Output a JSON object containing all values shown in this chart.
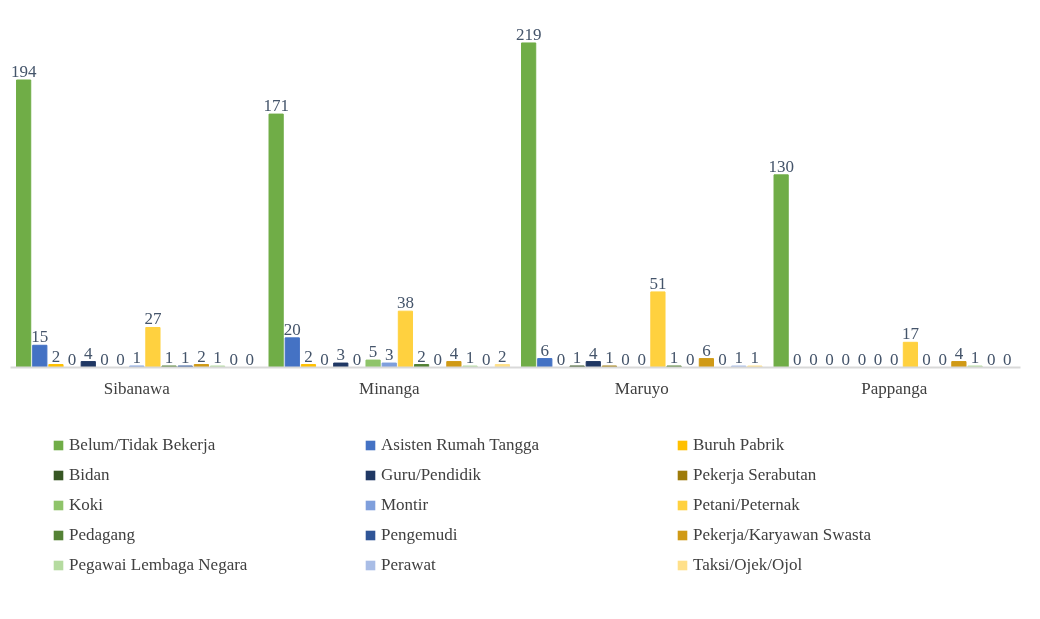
{
  "chart_data": {
    "type": "bar",
    "categories": [
      "Sibanawa",
      "Minanga",
      "Maruyo",
      "Pappanga"
    ],
    "series": [
      {
        "name": "Belum/Tidak Bekerja",
        "color": "#70ad47",
        "values": [
          194,
          171,
          219,
          130
        ]
      },
      {
        "name": "Asisten Rumah Tangga",
        "color": "#4472c4",
        "values": [
          15,
          20,
          6,
          0
        ]
      },
      {
        "name": "Buruh Pabrik",
        "color": "#ffc000",
        "values": [
          2,
          2,
          0,
          0
        ]
      },
      {
        "name": "Bidan",
        "color": "#375623",
        "values": [
          0,
          0,
          1,
          0
        ]
      },
      {
        "name": "Guru/Pendidik",
        "color": "#203864",
        "values": [
          4,
          3,
          4,
          0
        ]
      },
      {
        "name": "Pekerja Serabutan",
        "color": "#9e7b0a",
        "values": [
          0,
          0,
          1,
          0
        ]
      },
      {
        "name": "Koki",
        "color": "#8fc46a",
        "values": [
          0,
          5,
          0,
          0
        ]
      },
      {
        "name": "Montir",
        "color": "#7f9fdc",
        "values": [
          1,
          3,
          0,
          0
        ]
      },
      {
        "name": "Petani/Peternak",
        "color": "#ffd13f",
        "values": [
          27,
          38,
          51,
          17
        ]
      },
      {
        "name": "Pedagang",
        "color": "#548235",
        "values": [
          1,
          2,
          1,
          0
        ]
      },
      {
        "name": "Pengemudi",
        "color": "#2f5597",
        "values": [
          1,
          0,
          0,
          0
        ]
      },
      {
        "name": "Pekerja/Karyawan Swasta",
        "color": "#d09a16",
        "values": [
          2,
          4,
          6,
          4
        ]
      },
      {
        "name": "Pegawai Lembaga Negara",
        "color": "#b5dba0",
        "values": [
          1,
          1,
          0,
          1
        ]
      },
      {
        "name": "Perawat",
        "color": "#a9bde6",
        "values": [
          0,
          0,
          1,
          0
        ]
      },
      {
        "name": "Taksi/Ojek/Ojol",
        "color": "#ffe08a",
        "values": [
          0,
          2,
          1,
          0
        ]
      }
    ],
    "data_labels": true,
    "legend": "bottom",
    "grid": false
  }
}
